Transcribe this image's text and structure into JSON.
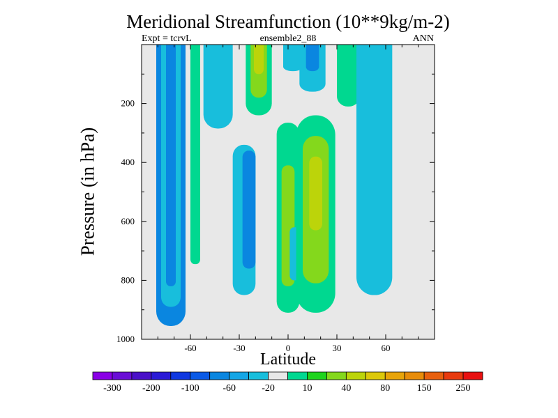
{
  "chart_data": {
    "type": "contour",
    "title": "Meridional Streamfunction (10**9kg/m-2)",
    "subtitle_left": "Expt = tcrvL",
    "subtitle_center": "ensemble2_88",
    "subtitle_right": "ANN",
    "xlabel": "Latitude",
    "ylabel": "Pressure (in hPa)",
    "xlim": [
      -90,
      90
    ],
    "ylim": [
      1000,
      0
    ],
    "x_ticks": [
      -60,
      -30,
      0,
      30,
      60
    ],
    "y_ticks": [
      200,
      400,
      600,
      800,
      1000
    ],
    "grid": false,
    "colorbar": {
      "levels": [
        -300,
        -200,
        -100,
        -60,
        -20,
        10,
        40,
        80,
        150,
        250
      ],
      "level_labels": [
        "-300",
        "-200",
        "-100",
        "-60",
        "-20",
        "10",
        "40",
        "80",
        "150",
        "250"
      ],
      "colors": [
        "#8a00e6",
        "#6a0ed6",
        "#4a10c8",
        "#2a1ad6",
        "#1038e0",
        "#0a5ae6",
        "#0a86e0",
        "#14a6e6",
        "#18bedc",
        "#e8e8e8",
        "#00d890",
        "#1ed41e",
        "#84d81c",
        "#bcd40a",
        "#dcc80a",
        "#e8a40a",
        "#e88c0a",
        "#e8600e",
        "#e83a0e",
        "#e81010"
      ]
    },
    "cells": [
      {
        "lat": -72,
        "lat_halfwidth": 9,
        "p_top": 0,
        "p_bottom": 955,
        "level": "-60"
      },
      {
        "lat": -72,
        "lat_halfwidth": 6,
        "p_top": 0,
        "p_bottom": 890,
        "level": "-20"
      },
      {
        "lat": -72,
        "lat_halfwidth": 3,
        "p_top": 0,
        "p_bottom": 820,
        "level": "-60"
      },
      {
        "lat": -57,
        "lat_halfwidth": 3,
        "p_top": 0,
        "p_bottom": 320,
        "level": "10"
      },
      {
        "lat": -57,
        "lat_halfwidth": 3,
        "p_top": 200,
        "p_bottom": 745,
        "level": "10"
      },
      {
        "lat": -43,
        "lat_halfwidth": 9,
        "p_top": 0,
        "p_bottom": 285,
        "level": "-20"
      },
      {
        "lat": -27,
        "lat_halfwidth": 7,
        "p_top": 340,
        "p_bottom": 850,
        "level": "-20"
      },
      {
        "lat": -24,
        "lat_halfwidth": 4,
        "p_top": 360,
        "p_bottom": 760,
        "level": "-60"
      },
      {
        "lat": -18,
        "lat_halfwidth": 8,
        "p_top": 0,
        "p_bottom": 240,
        "level": "10"
      },
      {
        "lat": -18,
        "lat_halfwidth": 5,
        "p_top": 0,
        "p_bottom": 180,
        "level": "40"
      },
      {
        "lat": -18,
        "lat_halfwidth": 3,
        "p_top": 0,
        "p_bottom": 100,
        "level": "80"
      },
      {
        "lat": 0,
        "lat_halfwidth": 7,
        "p_top": 265,
        "p_bottom": 910,
        "level": "10"
      },
      {
        "lat": 0,
        "lat_halfwidth": 4,
        "p_top": 410,
        "p_bottom": 820,
        "level": "40"
      },
      {
        "lat": 4,
        "lat_halfwidth": 3,
        "p_top": 620,
        "p_bottom": 800,
        "level": "-20"
      },
      {
        "lat": 3,
        "lat_halfwidth": 6,
        "p_top": 0,
        "p_bottom": 90,
        "level": "-20"
      },
      {
        "lat": 17,
        "lat_halfwidth": 12,
        "p_top": 240,
        "p_bottom": 910,
        "level": "10"
      },
      {
        "lat": 17,
        "lat_halfwidth": 8,
        "p_top": 310,
        "p_bottom": 810,
        "level": "40"
      },
      {
        "lat": 17,
        "lat_halfwidth": 4,
        "p_top": 380,
        "p_bottom": 630,
        "level": "80"
      },
      {
        "lat": 15,
        "lat_halfwidth": 8,
        "p_top": 0,
        "p_bottom": 160,
        "level": "-20"
      },
      {
        "lat": 15,
        "lat_halfwidth": 4,
        "p_top": 0,
        "p_bottom": 90,
        "level": "-60"
      },
      {
        "lat": 37,
        "lat_halfwidth": 7,
        "p_top": 0,
        "p_bottom": 210,
        "level": "10"
      },
      {
        "lat": 53,
        "lat_halfwidth": 11,
        "p_top": 0,
        "p_bottom": 850,
        "level": "-20"
      },
      {
        "lat": 53,
        "lat_halfwidth": 3,
        "p_top": 520,
        "p_bottom": 720,
        "level": "-20"
      }
    ]
  }
}
